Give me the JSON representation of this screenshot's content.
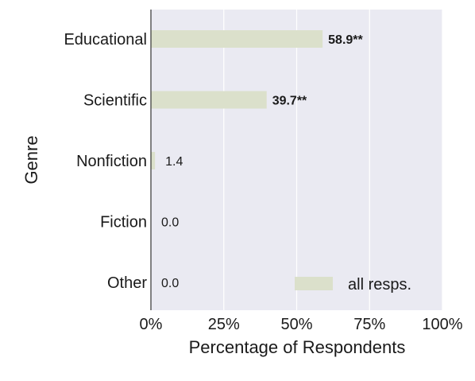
{
  "chart_data": {
    "type": "bar",
    "orientation": "horizontal",
    "categories": [
      "Educational",
      "Scientific",
      "Nonfiction",
      "Fiction",
      "Other"
    ],
    "series": [
      {
        "name": "all resps.",
        "values": [
          58.9,
          39.7,
          1.4,
          0.0,
          0.0
        ],
        "labels": [
          "58.9**",
          "39.7**",
          "1.4",
          "0.0",
          "0.0"
        ],
        "label_bold": [
          true,
          true,
          false,
          false,
          false
        ],
        "color": "#dbe0cb"
      }
    ],
    "xlabel": "Percentage of Respondents",
    "ylabel": "Genre",
    "xlim": [
      0,
      100
    ],
    "xticks": [
      0,
      25,
      50,
      75,
      100
    ],
    "xtick_labels": [
      "0%",
      "25%",
      "50%",
      "75%",
      "100%"
    ],
    "grid": true,
    "legend": "bottom-right",
    "colors": {
      "background": "#eaeaf2",
      "grid": "#ffffff",
      "axis": "#333333"
    }
  }
}
